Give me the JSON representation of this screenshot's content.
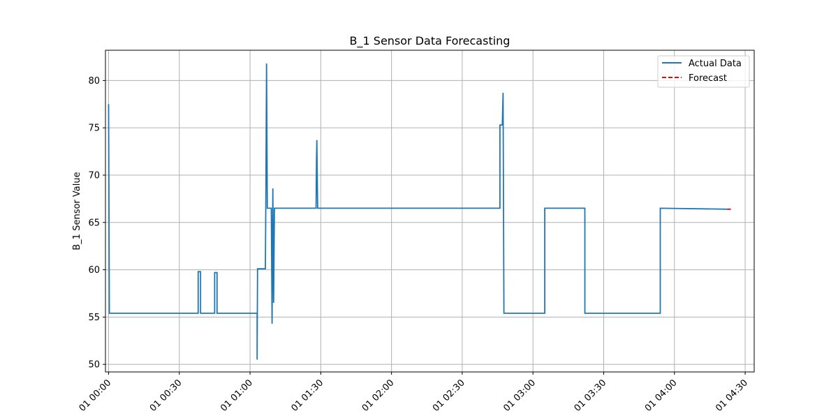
{
  "chart_data": {
    "type": "line",
    "title": "B_1 Sensor Data Forecasting",
    "xlabel": "",
    "ylabel": "B_1 Sensor Value",
    "x_is_time": true,
    "xlim": [
      "01 23:58:40",
      "01 04:33:50"
    ],
    "ylim": [
      49.2,
      83.2
    ],
    "x_ticks": [
      "01 00:00",
      "01 00:30",
      "01 01:00",
      "01 01:30",
      "01 02:00",
      "01 02:30",
      "01 03:00",
      "01 03:30",
      "01 04:00",
      "01 04:30"
    ],
    "y_ticks": [
      50,
      55,
      60,
      65,
      70,
      75,
      80
    ],
    "grid": true,
    "legend_position": "top-right",
    "colors": {
      "actual": "#1f77b4",
      "forecast": "#ff0000",
      "grid": "#b0b0b0"
    },
    "series": [
      {
        "name": "Actual Data",
        "style": "solid",
        "points": [
          [
            "00:00:00",
            77.5
          ],
          [
            "00:00:20",
            55.4
          ],
          [
            "00:38:00",
            55.4
          ],
          [
            "00:38:00",
            59.8
          ],
          [
            "00:39:00",
            59.8
          ],
          [
            "00:39:00",
            55.4
          ],
          [
            "00:45:00",
            55.4
          ],
          [
            "00:45:00",
            59.7
          ],
          [
            "00:46:00",
            59.7
          ],
          [
            "00:46:00",
            55.4
          ],
          [
            "01:03:00",
            55.4
          ],
          [
            "01:03:00",
            50.5
          ],
          [
            "01:03:10",
            60.1
          ],
          [
            "01:06:30",
            60.1
          ],
          [
            "01:06:40",
            66.5
          ],
          [
            "01:07:00",
            81.8
          ],
          [
            "01:07:20",
            66.5
          ],
          [
            "01:09:00",
            66.5
          ],
          [
            "01:09:20",
            54.3
          ],
          [
            "01:09:40",
            68.6
          ],
          [
            "01:10:00",
            56.5
          ],
          [
            "01:10:20",
            66.5
          ],
          [
            "01:28:00",
            66.5
          ],
          [
            "01:28:10",
            71.4
          ],
          [
            "01:28:20",
            73.7
          ],
          [
            "01:28:40",
            66.5
          ],
          [
            "02:46:00",
            66.5
          ],
          [
            "02:46:00",
            75.3
          ],
          [
            "02:47:00",
            75.3
          ],
          [
            "02:47:20",
            78.7
          ],
          [
            "02:47:40",
            55.4
          ],
          [
            "03:05:00",
            55.4
          ],
          [
            "03:05:00",
            66.5
          ],
          [
            "03:22:00",
            66.5
          ],
          [
            "03:22:00",
            55.4
          ],
          [
            "03:54:00",
            55.4
          ],
          [
            "03:54:00",
            66.5
          ],
          [
            "04:23:00",
            66.4
          ]
        ]
      },
      {
        "name": "Forecast",
        "style": "dashed",
        "points": [
          [
            "04:22:30",
            66.4
          ],
          [
            "04:24:00",
            66.4
          ]
        ]
      }
    ]
  }
}
